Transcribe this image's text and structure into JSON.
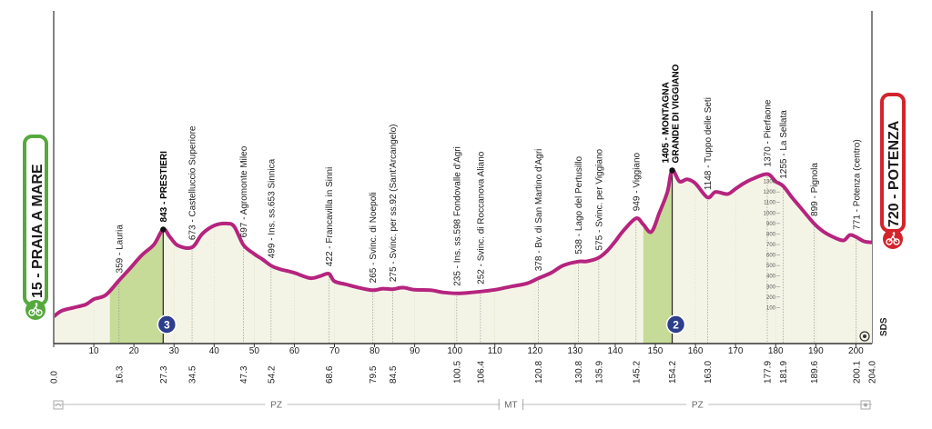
{
  "colors": {
    "profile_line": "#b5247e",
    "profile_fill": "#f4f4e6",
    "climb_fill": "#c6db98",
    "start_badge": "#56a93e",
    "finish_badge": "#d3242c",
    "kom_badge": "#2d3e8c"
  },
  "start": {
    "altitude": "15",
    "name": "PRAIA A MARE",
    "label": "15 - PRAIA A MARE",
    "icon": "cyclist-icon"
  },
  "finish": {
    "altitude": "720",
    "name": "POTENZA",
    "label": "720 - POTENZA",
    "icon": "cyclist-icon"
  },
  "chart_data": {
    "type": "area",
    "title": "",
    "xlabel": "",
    "ylabel": "",
    "xlim": [
      0,
      204
    ],
    "ylim": [
      0,
      1300
    ],
    "profile": [
      [
        0,
        15
      ],
      [
        2,
        70
      ],
      [
        5,
        100
      ],
      [
        8,
        130
      ],
      [
        10,
        180
      ],
      [
        13,
        220
      ],
      [
        16.3,
        359
      ],
      [
        19,
        470
      ],
      [
        22,
        600
      ],
      [
        25,
        700
      ],
      [
        27.3,
        843
      ],
      [
        29,
        770
      ],
      [
        31,
        690
      ],
      [
        34.5,
        673
      ],
      [
        37,
        800
      ],
      [
        40,
        880
      ],
      [
        43,
        900
      ],
      [
        45,
        870
      ],
      [
        47.3,
        697
      ],
      [
        50,
        610
      ],
      [
        52,
        560
      ],
      [
        54.2,
        499
      ],
      [
        56,
        470
      ],
      [
        60,
        430
      ],
      [
        64,
        380
      ],
      [
        66.5,
        400
      ],
      [
        68.6,
        422
      ],
      [
        70,
        350
      ],
      [
        73,
        320
      ],
      [
        76,
        290
      ],
      [
        79.5,
        265
      ],
      [
        82,
        280
      ],
      [
        84.5,
        275
      ],
      [
        87,
        290
      ],
      [
        90,
        270
      ],
      [
        94,
        265
      ],
      [
        97,
        245
      ],
      [
        100.5,
        235
      ],
      [
        103,
        240
      ],
      [
        106.4,
        252
      ],
      [
        110,
        270
      ],
      [
        114,
        300
      ],
      [
        118,
        330
      ],
      [
        120.8,
        378
      ],
      [
        124,
        430
      ],
      [
        127,
        500
      ],
      [
        130.8,
        538
      ],
      [
        133,
        540
      ],
      [
        135.9,
        575
      ],
      [
        138,
        640
      ],
      [
        140,
        730
      ],
      [
        142,
        830
      ],
      [
        145.2,
        949
      ],
      [
        147,
        890
      ],
      [
        149,
        820
      ],
      [
        151,
        1000
      ],
      [
        153,
        1200
      ],
      [
        154.2,
        1405
      ],
      [
        156,
        1300
      ],
      [
        158,
        1320
      ],
      [
        160,
        1280
      ],
      [
        163,
        1148
      ],
      [
        165,
        1200
      ],
      [
        168,
        1180
      ],
      [
        170,
        1230
      ],
      [
        172,
        1280
      ],
      [
        174,
        1320
      ],
      [
        177.9,
        1370
      ],
      [
        180,
        1300
      ],
      [
        181.9,
        1255
      ],
      [
        184,
        1150
      ],
      [
        186,
        1060
      ],
      [
        189.6,
        899
      ],
      [
        192,
        820
      ],
      [
        195,
        760
      ],
      [
        197,
        740
      ],
      [
        198.5,
        790
      ],
      [
        200.1,
        771
      ],
      [
        202,
        730
      ],
      [
        204,
        720
      ]
    ],
    "x_ticks": [
      0,
      10,
      20,
      30,
      40,
      50,
      60,
      70,
      80,
      90,
      100,
      110,
      120,
      130,
      140,
      150,
      160,
      170,
      180,
      190,
      200
    ],
    "x_ticks_labels": [
      "10",
      "20",
      "30",
      "40",
      "50",
      "60",
      "70",
      "80",
      "90",
      "100",
      "110",
      "120",
      "130",
      "140",
      "150",
      "160",
      "170",
      "180",
      "190",
      "200"
    ],
    "altitude_scale": [
      "100",
      "200",
      "300",
      "400",
      "500",
      "600",
      "700",
      "800",
      "900",
      "1000",
      "1100",
      "1200",
      "1300"
    ],
    "waypoints": [
      {
        "km": 16.3,
        "km_label": "16.3",
        "alt": 359,
        "label": "359 - Lauria"
      },
      {
        "km": 27.3,
        "km_label": "27.3",
        "alt": 843,
        "label": "843 - PRESTIERI",
        "bold": true,
        "kom": "3"
      },
      {
        "km": 34.5,
        "km_label": "34.5",
        "alt": 673,
        "label": "673 - Castelluccio Superiore"
      },
      {
        "km": 47.3,
        "km_label": "47.3",
        "alt": 697,
        "label": "697 - Agromonte Mileo"
      },
      {
        "km": 54.2,
        "km_label": "54.2",
        "alt": 499,
        "label": "499 - Ins. ss.653 Sinnica"
      },
      {
        "km": 68.6,
        "km_label": "68.6",
        "alt": 422,
        "label": "422 - Francavilla in Sinni"
      },
      {
        "km": 79.5,
        "km_label": "79.5",
        "alt": 265,
        "label": "265 - Svinc. di Noepoli"
      },
      {
        "km": 84.5,
        "km_label": "84.5",
        "alt": 275,
        "label": "275 - Svinc. per ss.92 (Sant'Arcangelo)"
      },
      {
        "km": 100.5,
        "km_label": "100.5",
        "alt": 235,
        "label": "235 - Ins. ss.598 Fondovalle d'Agri"
      },
      {
        "km": 106.4,
        "km_label": "106.4",
        "alt": 252,
        "label": "252 - Svinc. di Roccanova Aliano"
      },
      {
        "km": 120.8,
        "km_label": "120.8",
        "alt": 378,
        "label": "378 - Bv. di San Martino d'Agri"
      },
      {
        "km": 130.8,
        "km_label": "130.8",
        "alt": 538,
        "label": "538 - Lago del Pertusillo"
      },
      {
        "km": 135.9,
        "km_label": "135.9",
        "alt": 575,
        "label": "575 - Svinc. per Viggiano"
      },
      {
        "km": 145.2,
        "km_label": "145.2",
        "alt": 949,
        "label": "949 - Viggiano"
      },
      {
        "km": 154.2,
        "km_label": "154.2",
        "alt": 1405,
        "label": "1405 - MONTAGNA",
        "label2": "GRANDE DI VIGGIANO",
        "bold": true,
        "kom": "2"
      },
      {
        "km": 163.0,
        "km_label": "163.0",
        "alt": 1148,
        "label": "1148 - Tuppo delle Seti"
      },
      {
        "km": 177.9,
        "km_label": "177.9",
        "alt": 1370,
        "label": "1370 - Pierfaone"
      },
      {
        "km": 181.9,
        "km_label": "181.9",
        "alt": 1255,
        "label": "1255 - La Sellata"
      },
      {
        "km": 189.6,
        "km_label": "189.6",
        "alt": 899,
        "label": "899 - Pignola"
      },
      {
        "km": 200.1,
        "km_label": "200.1",
        "alt": 771,
        "label": "771 - Potenza (centro)"
      }
    ],
    "km_start_label": "0.0",
    "km_end_label": "204.0",
    "climbs": [
      {
        "from": 14,
        "to": 27.3,
        "category": "3"
      },
      {
        "from": 147,
        "to": 154.2,
        "category": "2"
      }
    ],
    "regions": [
      {
        "label": "PZ",
        "from": 0,
        "to": 111
      },
      {
        "label": "MT",
        "from": 111,
        "to": 117
      },
      {
        "label": "PZ",
        "from": 117,
        "to": 204
      }
    ],
    "sds_label": "SDS"
  }
}
